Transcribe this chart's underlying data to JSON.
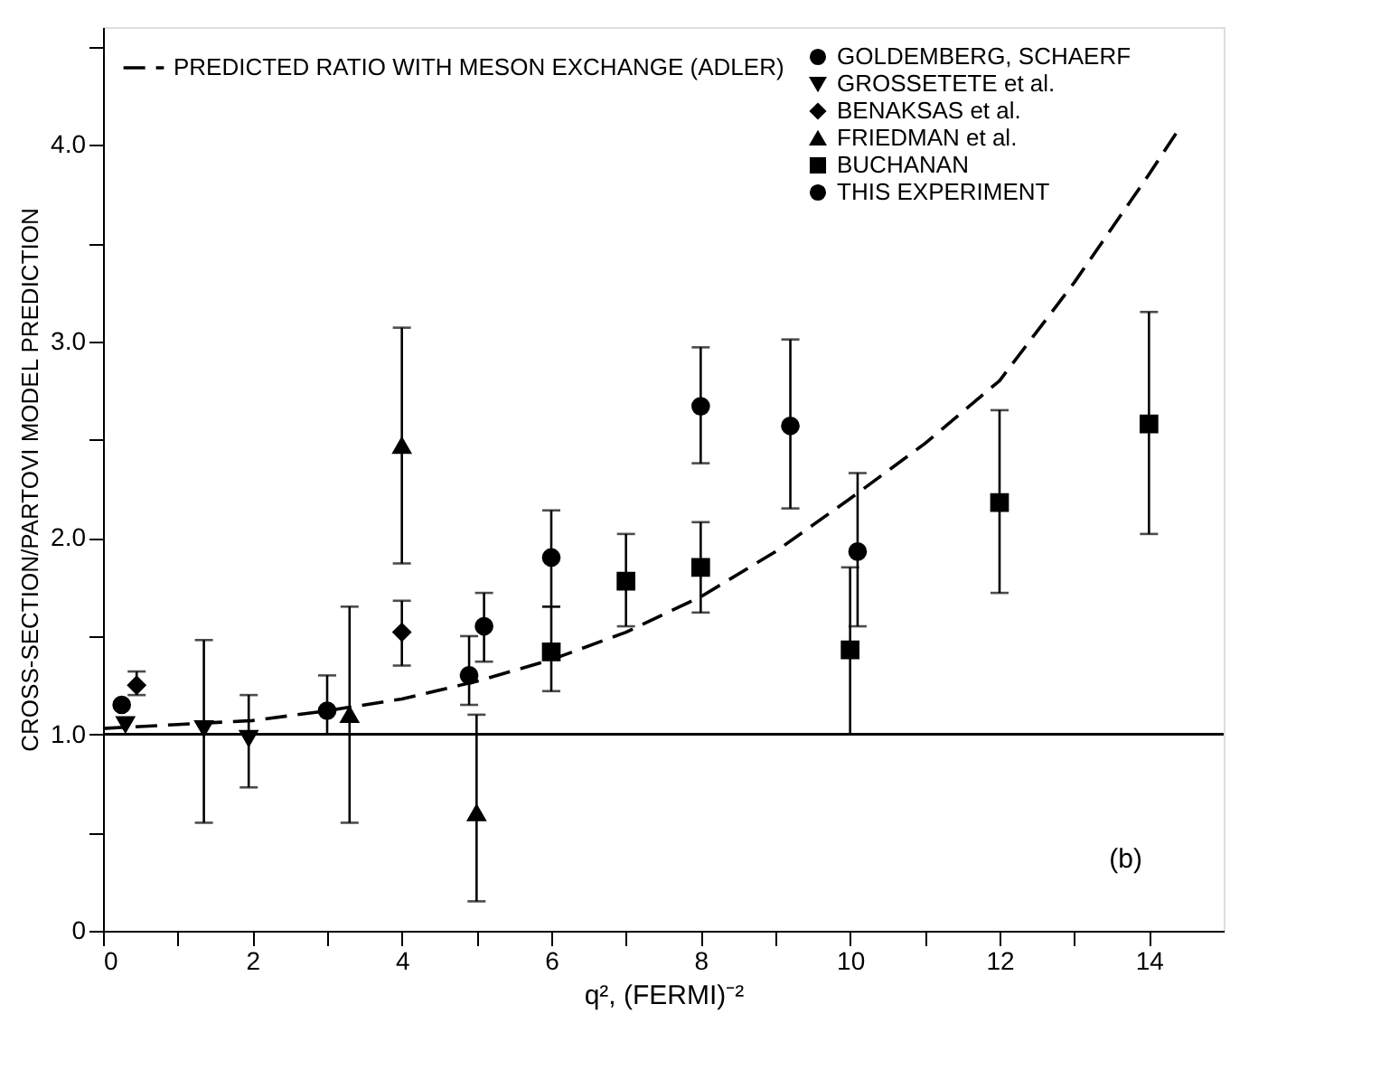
{
  "chart_data": {
    "type": "scatter",
    "xlabel": "q², (FERMI)⁻²",
    "ylabel": "CROSS-SECTION/PARTOVI MODEL PREDICTION",
    "xlim": [
      0,
      15
    ],
    "ylim": [
      0,
      4.6
    ],
    "xticks": [
      0,
      {
        "value": 1,
        "label": null
      },
      2,
      {
        "value": 3,
        "label": null
      },
      4,
      {
        "value": 5,
        "label": null
      },
      6,
      {
        "value": 7,
        "label": null
      },
      8,
      {
        "value": 9,
        "label": null
      },
      10,
      {
        "value": 11,
        "label": null
      },
      12,
      {
        "value": 13,
        "label": null
      },
      14
    ],
    "yticks": [
      0,
      {
        "value": 0.5,
        "label": null
      },
      {
        "value": 1,
        "label": "1.0"
      },
      {
        "value": 1.5,
        "label": null
      },
      {
        "value": 2,
        "label": "2.0"
      },
      {
        "value": 2.5,
        "label": null
      },
      {
        "value": 3,
        "label": "3.0"
      },
      {
        "value": 3.5,
        "label": null
      },
      {
        "value": 4,
        "label": "4.0"
      },
      {
        "value": 4.5,
        "label": null
      }
    ],
    "grid": false,
    "legend": "top left",
    "ref_lines": [
      {
        "axis": "y",
        "value": 1.0,
        "color": "#000000",
        "line_style": "solid"
      }
    ],
    "annotations": [
      "(b)"
    ],
    "series": [
      {
        "name": "PREDICTED RATIO WITH MESON EXCHANGE (ADLER)",
        "type": "line",
        "line_style": "dashed",
        "marker": "none",
        "color": "#000000",
        "x": [
          0,
          1,
          2,
          3,
          4,
          5,
          6,
          7,
          8,
          9,
          10,
          11,
          12,
          13,
          14,
          14.4
        ],
        "values": [
          1.03,
          1.05,
          1.07,
          1.12,
          1.18,
          1.27,
          1.38,
          1.52,
          1.7,
          1.93,
          2.2,
          2.48,
          2.8,
          3.3,
          3.85,
          4.08
        ]
      },
      {
        "name": "GOLDEMBERG, SCHAERF",
        "marker": "circle",
        "color": "#000000",
        "x": [
          0.25,
          3,
          4.9
        ],
        "values": [
          1.15,
          1.12,
          1.3
        ],
        "errors": [
          null,
          [
            1.0,
            1.3
          ],
          [
            1.15,
            1.5
          ]
        ]
      },
      {
        "name": "GROSSETETE et al.",
        "marker": "triangle-down",
        "color": "#000000",
        "x": [
          0.3,
          1.35,
          1.95
        ],
        "values": [
          1.05,
          1.03,
          0.98
        ],
        "errors": [
          null,
          [
            0.55,
            1.48
          ],
          [
            0.73,
            1.2
          ]
        ]
      },
      {
        "name": "BENAKSAS et al.",
        "marker": "diamond",
        "color": "#000000",
        "x": [
          0.45,
          4
        ],
        "values": [
          1.25,
          1.52
        ],
        "errors": [
          [
            1.2,
            1.32
          ],
          [
            1.35,
            1.68
          ]
        ]
      },
      {
        "name": "FRIEDMAN et al.",
        "marker": "triangle",
        "color": "#000000",
        "x": [
          3.3,
          4,
          5
        ],
        "values": [
          1.1,
          2.47,
          0.6
        ],
        "errors": [
          [
            0.55,
            1.65
          ],
          [
            1.87,
            3.07
          ],
          [
            0.15,
            1.1
          ]
        ]
      },
      {
        "name": "BUCHANAN",
        "marker": "square",
        "color": "#000000",
        "x": [
          6,
          7,
          8,
          10,
          12,
          14
        ],
        "values": [
          1.42,
          1.78,
          1.85,
          1.43,
          2.18,
          2.58
        ],
        "errors": [
          [
            1.22,
            1.65
          ],
          [
            1.55,
            2.02
          ],
          [
            1.62,
            2.08
          ],
          [
            1.0,
            1.85
          ],
          [
            1.72,
            2.65
          ],
          [
            2.02,
            3.15
          ]
        ]
      },
      {
        "name": "THIS EXPERIMENT",
        "marker": "circle",
        "color": "#000000",
        "x": [
          5.1,
          6,
          8,
          9.2,
          10.1
        ],
        "values": [
          1.55,
          1.9,
          2.67,
          2.57,
          1.93
        ],
        "errors": [
          [
            1.37,
            1.72
          ],
          [
            1.65,
            2.14
          ],
          [
            2.38,
            2.97
          ],
          [
            2.15,
            3.01
          ],
          [
            1.55,
            2.33
          ]
        ]
      }
    ]
  }
}
